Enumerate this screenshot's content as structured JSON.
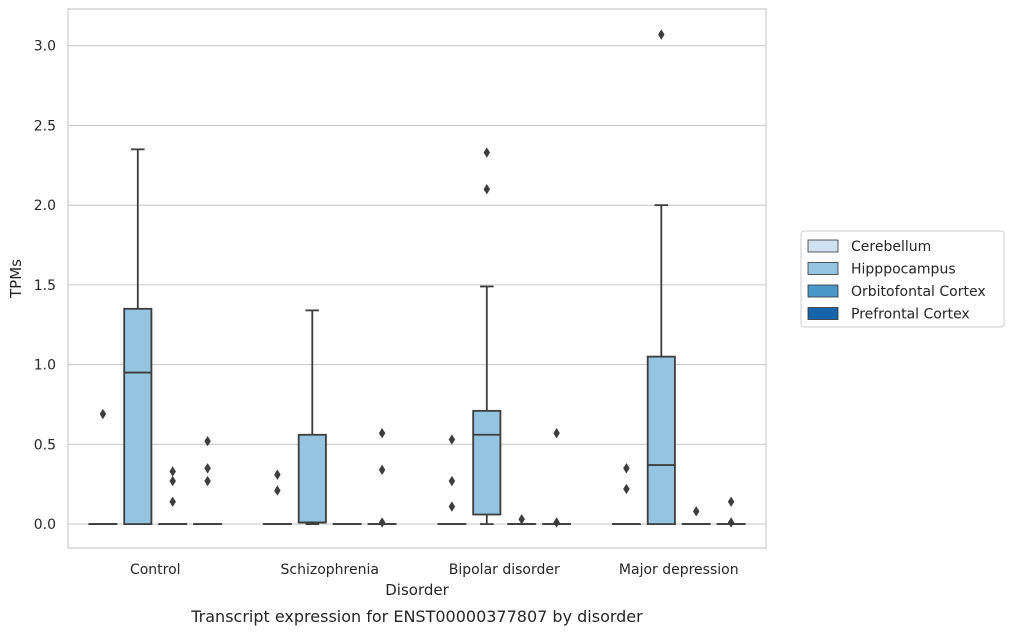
{
  "chart_data": {
    "type": "box",
    "caption": "Transcript expression for ENST00000377807 by disorder",
    "xlabel": "Disorder",
    "ylabel": "TPMs",
    "ylim": [
      -0.15,
      3.23
    ],
    "yticks": [
      "0.0",
      "0.5",
      "1.0",
      "1.5",
      "2.0",
      "2.5",
      "3.0"
    ],
    "grid": "horizontal",
    "legend_placement": "right",
    "categories": [
      "Control",
      "Schizophrenia",
      "Bipolar disorder",
      "Major depression"
    ],
    "series": [
      {
        "name": "Cerebellum",
        "color": "#d0e1f2",
        "boxes": [
          {
            "q1": 0,
            "median": 0,
            "q3": 0,
            "whisker_low": 0,
            "whisker_high": 0,
            "outliers": [
              0.69
            ]
          },
          {
            "q1": 0,
            "median": 0,
            "q3": 0,
            "whisker_low": 0,
            "whisker_high": 0,
            "outliers": [
              0.21,
              0.31
            ]
          },
          {
            "q1": 0,
            "median": 0,
            "q3": 0,
            "whisker_low": 0,
            "whisker_high": 0,
            "outliers": [
              0.11,
              0.27,
              0.53
            ]
          },
          {
            "q1": 0,
            "median": 0,
            "q3": 0,
            "whisker_low": 0,
            "whisker_high": 0,
            "outliers": [
              0.22,
              0.35
            ]
          }
        ]
      },
      {
        "name": "Hipppocampus",
        "color": "#94c4df",
        "boxes": [
          {
            "q1": 0,
            "median": 0.95,
            "q3": 1.35,
            "whisker_low": 0,
            "whisker_high": 2.35,
            "outliers": []
          },
          {
            "q1": 0.01,
            "median": 0.01,
            "q3": 0.56,
            "whisker_low": 0,
            "whisker_high": 1.34,
            "outliers": []
          },
          {
            "q1": 0.06,
            "median": 0.56,
            "q3": 0.71,
            "whisker_low": 0,
            "whisker_high": 1.49,
            "outliers": [
              2.1,
              2.33
            ]
          },
          {
            "q1": 0,
            "median": 0.37,
            "q3": 1.05,
            "whisker_low": 0,
            "whisker_high": 2.0,
            "outliers": [
              3.07
            ]
          }
        ]
      },
      {
        "name": "Orbitofontal Cortex",
        "color": "#4a98c9",
        "boxes": [
          {
            "q1": 0,
            "median": 0,
            "q3": 0,
            "whisker_low": 0,
            "whisker_high": 0,
            "outliers": [
              0.14,
              0.27,
              0.33
            ]
          },
          {
            "q1": 0,
            "median": 0,
            "q3": 0,
            "whisker_low": 0,
            "whisker_high": 0,
            "outliers": []
          },
          {
            "q1": 0,
            "median": 0,
            "q3": 0,
            "whisker_low": 0,
            "whisker_high": 0,
            "outliers": [
              0.03
            ]
          },
          {
            "q1": 0,
            "median": 0,
            "q3": 0,
            "whisker_low": 0,
            "whisker_high": 0,
            "outliers": [
              0.08
            ]
          }
        ]
      },
      {
        "name": "Prefrontal Cortex",
        "color": "#1764ab",
        "boxes": [
          {
            "q1": 0,
            "median": 0,
            "q3": 0,
            "whisker_low": 0,
            "whisker_high": 0,
            "outliers": [
              0.27,
              0.35,
              0.52
            ]
          },
          {
            "q1": 0,
            "median": 0,
            "q3": 0,
            "whisker_low": 0,
            "whisker_high": 0,
            "outliers": [
              0.01,
              0.34,
              0.57
            ]
          },
          {
            "q1": 0,
            "median": 0,
            "q3": 0,
            "whisker_low": 0,
            "whisker_high": 0,
            "outliers": [
              0.01,
              0.57
            ]
          },
          {
            "q1": 0,
            "median": 0,
            "q3": 0,
            "whisker_low": 0,
            "whisker_high": 0,
            "outliers": [
              0.01,
              0.14
            ]
          }
        ]
      }
    ]
  }
}
